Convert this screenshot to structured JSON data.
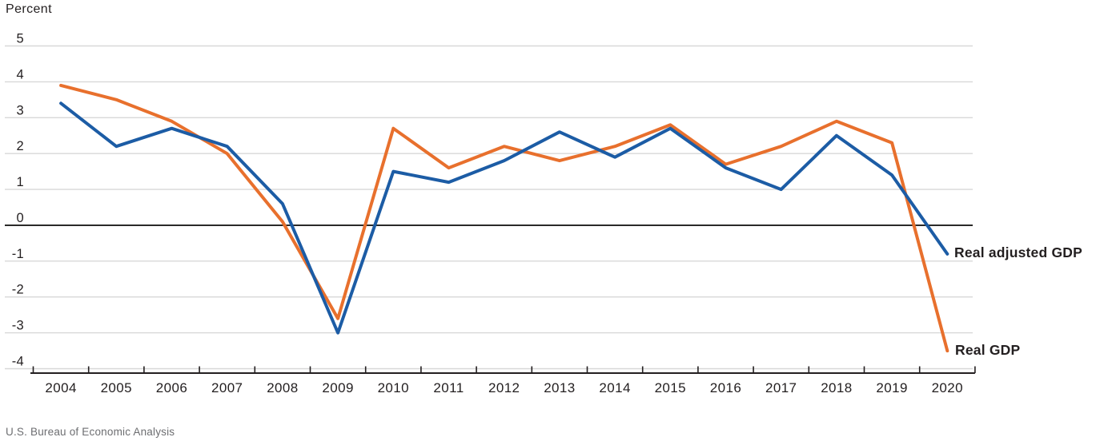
{
  "chart_data": {
    "type": "line",
    "unit_label": "Percent",
    "source": "U.S. Bureau of Economic Analysis",
    "categories": [
      "2004",
      "2005",
      "2006",
      "2007",
      "2008",
      "2009",
      "2010",
      "2011",
      "2012",
      "2013",
      "2014",
      "2015",
      "2016",
      "2017",
      "2018",
      "2019",
      "2020"
    ],
    "series": [
      {
        "name": "Real GDP",
        "color": "#e8702d",
        "values": [
          3.9,
          3.5,
          2.9,
          2.0,
          0.1,
          -2.6,
          2.7,
          1.6,
          2.2,
          1.8,
          2.2,
          2.8,
          1.7,
          2.2,
          2.9,
          2.3,
          -3.5
        ]
      },
      {
        "name": "Real adjusted GDP",
        "color": "#1c5ca5",
        "values": [
          3.4,
          2.2,
          2.7,
          2.2,
          0.6,
          -3.0,
          1.5,
          1.2,
          1.8,
          2.6,
          1.9,
          2.7,
          1.6,
          1.0,
          2.5,
          1.4,
          -0.8
        ]
      }
    ],
    "ylim": [
      -4,
      5
    ],
    "yticks": [
      5,
      4,
      3,
      2,
      1,
      0,
      -1,
      -2,
      -3,
      -4
    ],
    "grid": true,
    "legend_position": "right-of-line-ends",
    "colors": {
      "grid": "#d8d8d8",
      "axis": "#231f20",
      "tick_text": "#231f20",
      "source_text": "#6d6e71"
    }
  }
}
